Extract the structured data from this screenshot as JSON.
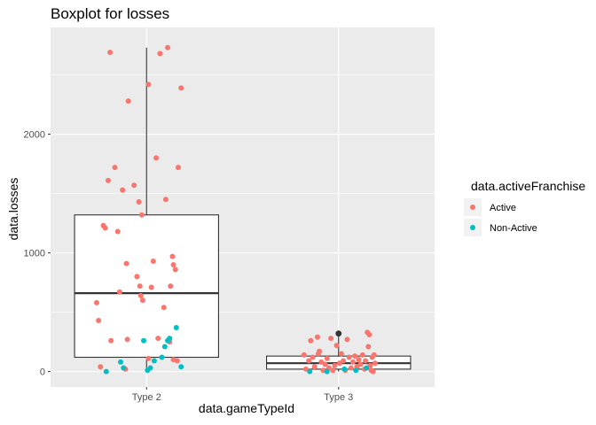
{
  "chart_data": {
    "type": "boxplot",
    "title": "Boxplot for losses",
    "xlabel": "data.gameTypeId",
    "ylabel": "data.losses",
    "categories": [
      "Type 2",
      "Type 3"
    ],
    "ylim": [
      -130,
      2900
    ],
    "yticks": [
      0,
      1000,
      2000
    ],
    "ytick_labels": [
      "0",
      "1000",
      "2000"
    ],
    "grid": true,
    "legend": {
      "title": "data.activeFranchise",
      "placement": "right",
      "entries": [
        {
          "label": "Active",
          "color": "#F8766D"
        },
        {
          "label": "Non-Active",
          "color": "#00BFC4"
        }
      ]
    },
    "boxes": [
      {
        "category": "Type 2",
        "whisker_low": 0,
        "q1": 120,
        "median": 660,
        "q3": 1320,
        "whisker_high": 2730,
        "outliers": []
      },
      {
        "category": "Type 3",
        "whisker_low": 0,
        "q1": 20,
        "median": 70,
        "q3": 130,
        "whisker_high": 310,
        "outliers": [
          320
        ]
      }
    ],
    "points": [
      {
        "x": "Type 2",
        "j": -0.52,
        "y": 580,
        "group": "Active"
      },
      {
        "x": "Type 2",
        "j": -0.5,
        "y": 430,
        "group": "Active"
      },
      {
        "x": "Type 2",
        "j": -0.45,
        "y": 1230,
        "group": "Active"
      },
      {
        "x": "Type 2",
        "j": -0.43,
        "y": 1210,
        "group": "Active"
      },
      {
        "x": "Type 2",
        "j": -0.4,
        "y": 1610,
        "group": "Active"
      },
      {
        "x": "Type 2",
        "j": -0.38,
        "y": 2690,
        "group": "Active"
      },
      {
        "x": "Type 2",
        "j": -0.37,
        "y": 260,
        "group": "Active"
      },
      {
        "x": "Type 2",
        "j": -0.33,
        "y": 1720,
        "group": "Active"
      },
      {
        "x": "Type 2",
        "j": -0.3,
        "y": 1180,
        "group": "Active"
      },
      {
        "x": "Type 2",
        "j": -0.28,
        "y": 670,
        "group": "Active"
      },
      {
        "x": "Type 2",
        "j": -0.25,
        "y": 1530,
        "group": "Active"
      },
      {
        "x": "Type 2",
        "j": -0.21,
        "y": 910,
        "group": "Active"
      },
      {
        "x": "Type 2",
        "j": -0.2,
        "y": 270,
        "group": "Active"
      },
      {
        "x": "Type 2",
        "j": -0.19,
        "y": 2280,
        "group": "Active"
      },
      {
        "x": "Type 2",
        "j": -0.13,
        "y": 1570,
        "group": "Active"
      },
      {
        "x": "Type 2",
        "j": -0.1,
        "y": 800,
        "group": "Active"
      },
      {
        "x": "Type 2",
        "j": -0.08,
        "y": 1430,
        "group": "Active"
      },
      {
        "x": "Type 2",
        "j": -0.07,
        "y": 720,
        "group": "Active"
      },
      {
        "x": "Type 2",
        "j": -0.06,
        "y": 640,
        "group": "Active"
      },
      {
        "x": "Type 2",
        "j": -0.05,
        "y": 1320,
        "group": "Active"
      },
      {
        "x": "Type 2",
        "j": -0.04,
        "y": 600,
        "group": "Active"
      },
      {
        "x": "Type 2",
        "j": 0.02,
        "y": 2420,
        "group": "Active"
      },
      {
        "x": "Type 2",
        "j": 0.05,
        "y": 710,
        "group": "Active"
      },
      {
        "x": "Type 2",
        "j": 0.07,
        "y": 930,
        "group": "Active"
      },
      {
        "x": "Type 2",
        "j": 0.1,
        "y": 1800,
        "group": "Active"
      },
      {
        "x": "Type 2",
        "j": 0.12,
        "y": 280,
        "group": "Active"
      },
      {
        "x": "Type 2",
        "j": 0.14,
        "y": 2680,
        "group": "Active"
      },
      {
        "x": "Type 2",
        "j": 0.18,
        "y": 540,
        "group": "Active"
      },
      {
        "x": "Type 2",
        "j": 0.2,
        "y": 1450,
        "group": "Active"
      },
      {
        "x": "Type 2",
        "j": 0.22,
        "y": 2730,
        "group": "Active"
      },
      {
        "x": "Type 2",
        "j": 0.24,
        "y": 250,
        "group": "Active"
      },
      {
        "x": "Type 2",
        "j": 0.25,
        "y": 720,
        "group": "Active"
      },
      {
        "x": "Type 2",
        "j": 0.27,
        "y": 970,
        "group": "Active"
      },
      {
        "x": "Type 2",
        "j": 0.28,
        "y": 900,
        "group": "Active"
      },
      {
        "x": "Type 2",
        "j": 0.3,
        "y": 860,
        "group": "Active"
      },
      {
        "x": "Type 2",
        "j": 0.33,
        "y": 1720,
        "group": "Active"
      },
      {
        "x": "Type 2",
        "j": 0.36,
        "y": 2390,
        "group": "Active"
      },
      {
        "x": "Type 2",
        "j": 0.28,
        "y": 100,
        "group": "Active"
      },
      {
        "x": "Type 2",
        "j": 0.32,
        "y": 90,
        "group": "Active"
      },
      {
        "x": "Type 2",
        "j": -0.48,
        "y": 40,
        "group": "Active"
      },
      {
        "x": "Type 2",
        "j": -0.22,
        "y": 20,
        "group": "Active"
      },
      {
        "x": "Type 2",
        "j": 0.02,
        "y": 110,
        "group": "Active"
      },
      {
        "x": "Type 2",
        "j": -0.42,
        "y": 0,
        "group": "Non-Active"
      },
      {
        "x": "Type 2",
        "j": -0.27,
        "y": 80,
        "group": "Non-Active"
      },
      {
        "x": "Type 2",
        "j": -0.24,
        "y": 30,
        "group": "Non-Active"
      },
      {
        "x": "Type 2",
        "j": -0.03,
        "y": 260,
        "group": "Non-Active"
      },
      {
        "x": "Type 2",
        "j": 0.01,
        "y": 10,
        "group": "Non-Active"
      },
      {
        "x": "Type 2",
        "j": 0.04,
        "y": 30,
        "group": "Non-Active"
      },
      {
        "x": "Type 2",
        "j": 0.08,
        "y": 90,
        "group": "Non-Active"
      },
      {
        "x": "Type 2",
        "j": 0.16,
        "y": 120,
        "group": "Non-Active"
      },
      {
        "x": "Type 2",
        "j": 0.19,
        "y": 210,
        "group": "Non-Active"
      },
      {
        "x": "Type 2",
        "j": 0.22,
        "y": 260,
        "group": "Non-Active"
      },
      {
        "x": "Type 2",
        "j": 0.24,
        "y": 280,
        "group": "Non-Active"
      },
      {
        "x": "Type 2",
        "j": 0.31,
        "y": 370,
        "group": "Non-Active"
      },
      {
        "x": "Type 2",
        "j": 0.36,
        "y": 40,
        "group": "Non-Active"
      },
      {
        "x": "Type 3",
        "j": -0.36,
        "y": 140,
        "group": "Active"
      },
      {
        "x": "Type 3",
        "j": -0.34,
        "y": 20,
        "group": "Active"
      },
      {
        "x": "Type 3",
        "j": -0.31,
        "y": 90,
        "group": "Active"
      },
      {
        "x": "Type 3",
        "j": -0.29,
        "y": 260,
        "group": "Active"
      },
      {
        "x": "Type 3",
        "j": -0.27,
        "y": 120,
        "group": "Active"
      },
      {
        "x": "Type 3",
        "j": -0.25,
        "y": 40,
        "group": "Active"
      },
      {
        "x": "Type 3",
        "j": -0.22,
        "y": 290,
        "group": "Active"
      },
      {
        "x": "Type 3",
        "j": -0.21,
        "y": 150,
        "group": "Active"
      },
      {
        "x": "Type 3",
        "j": -0.2,
        "y": 170,
        "group": "Active"
      },
      {
        "x": "Type 3",
        "j": -0.18,
        "y": 80,
        "group": "Active"
      },
      {
        "x": "Type 3",
        "j": -0.16,
        "y": 10,
        "group": "Active"
      },
      {
        "x": "Type 3",
        "j": -0.14,
        "y": 60,
        "group": "Active"
      },
      {
        "x": "Type 3",
        "j": -0.12,
        "y": 110,
        "group": "Active"
      },
      {
        "x": "Type 3",
        "j": -0.1,
        "y": 30,
        "group": "Active"
      },
      {
        "x": "Type 3",
        "j": -0.08,
        "y": 280,
        "group": "Active"
      },
      {
        "x": "Type 3",
        "j": -0.06,
        "y": 10,
        "group": "Active"
      },
      {
        "x": "Type 3",
        "j": -0.04,
        "y": 50,
        "group": "Active"
      },
      {
        "x": "Type 3",
        "j": -0.02,
        "y": 220,
        "group": "Active"
      },
      {
        "x": "Type 3",
        "j": 0.01,
        "y": 70,
        "group": "Active"
      },
      {
        "x": "Type 3",
        "j": 0.03,
        "y": 150,
        "group": "Active"
      },
      {
        "x": "Type 3",
        "j": 0.05,
        "y": 90,
        "group": "Active"
      },
      {
        "x": "Type 3",
        "j": 0.07,
        "y": 10,
        "group": "Active"
      },
      {
        "x": "Type 3",
        "j": 0.09,
        "y": 270,
        "group": "Active"
      },
      {
        "x": "Type 3",
        "j": 0.11,
        "y": 120,
        "group": "Active"
      },
      {
        "x": "Type 3",
        "j": 0.13,
        "y": 30,
        "group": "Active"
      },
      {
        "x": "Type 3",
        "j": 0.15,
        "y": 80,
        "group": "Active"
      },
      {
        "x": "Type 3",
        "j": 0.17,
        "y": 130,
        "group": "Active"
      },
      {
        "x": "Type 3",
        "j": 0.19,
        "y": 40,
        "group": "Active"
      },
      {
        "x": "Type 3",
        "j": 0.21,
        "y": 100,
        "group": "Active"
      },
      {
        "x": "Type 3",
        "j": 0.23,
        "y": 60,
        "group": "Active"
      },
      {
        "x": "Type 3",
        "j": 0.25,
        "y": 140,
        "group": "Active"
      },
      {
        "x": "Type 3",
        "j": 0.27,
        "y": 20,
        "group": "Active"
      },
      {
        "x": "Type 3",
        "j": 0.28,
        "y": 90,
        "group": "Active"
      },
      {
        "x": "Type 3",
        "j": 0.3,
        "y": 330,
        "group": "Active"
      },
      {
        "x": "Type 3",
        "j": 0.31,
        "y": 210,
        "group": "Active"
      },
      {
        "x": "Type 3",
        "j": 0.32,
        "y": 310,
        "group": "Active"
      },
      {
        "x": "Type 3",
        "j": 0.33,
        "y": 50,
        "group": "Active"
      },
      {
        "x": "Type 3",
        "j": 0.34,
        "y": 10,
        "group": "Active"
      },
      {
        "x": "Type 3",
        "j": 0.35,
        "y": 120,
        "group": "Active"
      },
      {
        "x": "Type 3",
        "j": 0.36,
        "y": 0,
        "group": "Active"
      },
      {
        "x": "Type 3",
        "j": 0.37,
        "y": 140,
        "group": "Active"
      },
      {
        "x": "Type 3",
        "j": 0.38,
        "y": 70,
        "group": "Active"
      },
      {
        "x": "Type 3",
        "j": -0.3,
        "y": 0,
        "group": "Non-Active"
      },
      {
        "x": "Type 3",
        "j": -0.12,
        "y": 0,
        "group": "Non-Active"
      },
      {
        "x": "Type 3",
        "j": 0.06,
        "y": 20,
        "group": "Non-Active"
      },
      {
        "x": "Type 3",
        "j": 0.18,
        "y": 10,
        "group": "Non-Active"
      },
      {
        "x": "Type 3",
        "j": 0.29,
        "y": 30,
        "group": "Non-Active"
      }
    ]
  }
}
